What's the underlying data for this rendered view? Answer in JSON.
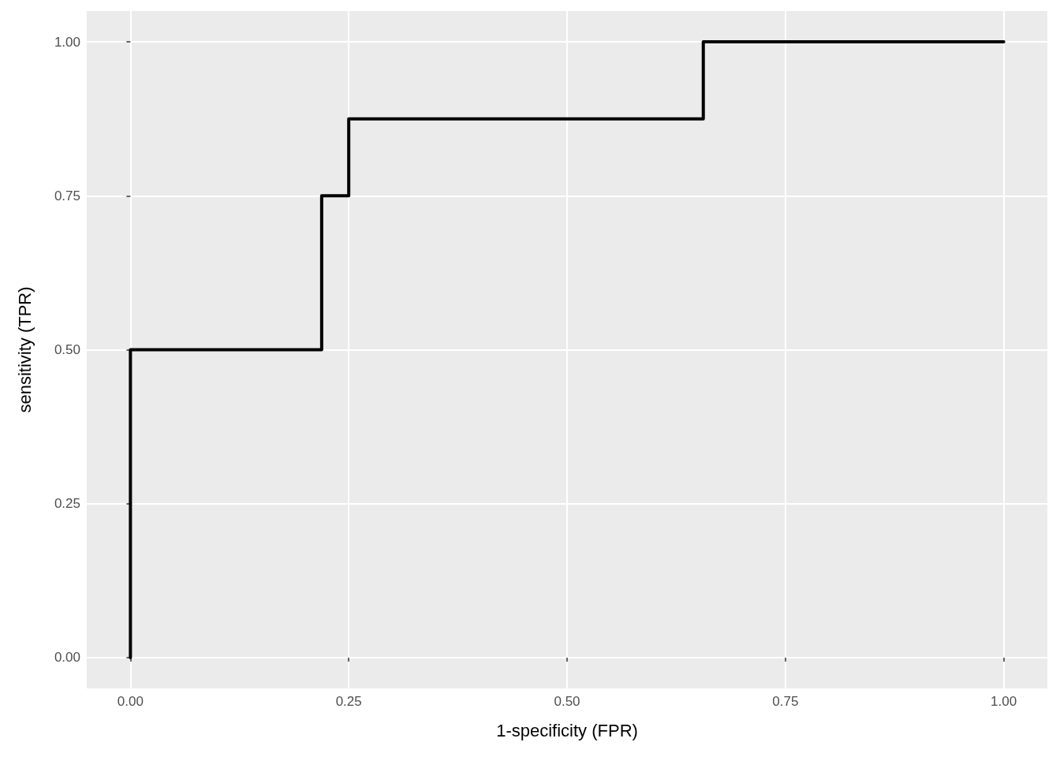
{
  "chart_data": {
    "type": "line",
    "xlabel": "1-specificity (FPR)",
    "ylabel": "sensitivity (TPR)",
    "x": [
      0,
      0,
      0.219,
      0.219,
      0.25,
      0.25,
      0.656,
      0.656,
      1
    ],
    "series": [
      {
        "color": "#000000",
        "values": [
          0,
          0.5,
          0.5,
          0.75,
          0.75,
          0.875,
          0.875,
          1,
          1
        ]
      }
    ],
    "xlim": [
      -0.05,
      1.05
    ],
    "ylim": [
      -0.05,
      1.05
    ],
    "xticks": [
      {
        "value": 0,
        "label": "0.00"
      },
      {
        "value": 0.25,
        "label": "0.25"
      },
      {
        "value": 0.5,
        "label": "0.50"
      },
      {
        "value": 0.75,
        "label": "0.75"
      },
      {
        "value": 1,
        "label": "1.00"
      }
    ],
    "yticks": [
      {
        "value": 0,
        "label": "0.00"
      },
      {
        "value": 0.25,
        "label": "0.25"
      },
      {
        "value": 0.5,
        "label": "0.50"
      },
      {
        "value": 0.75,
        "label": "0.75"
      },
      {
        "value": 1,
        "label": "1.00"
      }
    ],
    "grid": true,
    "marker": "none",
    "line_style": "solid"
  }
}
